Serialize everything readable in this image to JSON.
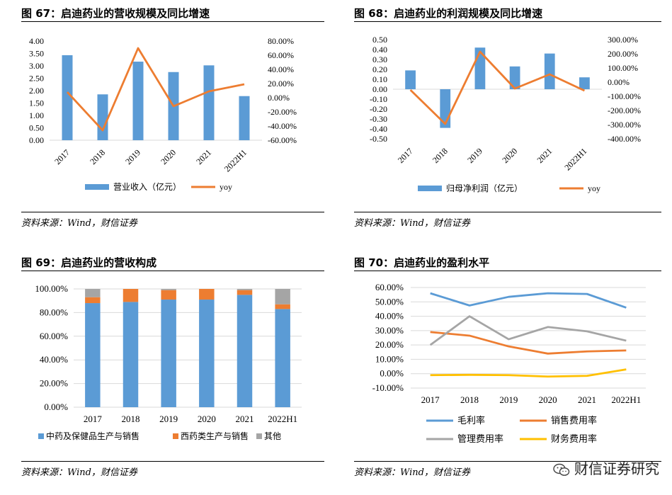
{
  "charts": [
    {
      "title": "图 67：启迪药业的营收规模及同比增速",
      "source": "资料来源：Wind，财信证券",
      "chart_data": {
        "type": "bar",
        "categories": [
          "2017",
          "2018",
          "2019",
          "2020",
          "2021",
          "2022H1"
        ],
        "series": [
          {
            "name": "营业收入（亿元）",
            "type": "bar",
            "axis": "left",
            "color": "#5b9bd5",
            "values": [
              3.43,
              1.85,
              3.17,
              2.75,
              3.02,
              1.78
            ]
          },
          {
            "name": "yoy",
            "type": "line",
            "axis": "right",
            "color": "#ed7d31",
            "values": [
              0.08,
              -0.46,
              0.7,
              -0.12,
              0.09,
              0.19
            ]
          }
        ],
        "y_left": {
          "min": 0,
          "max": 4,
          "step": 0.5,
          "ticks": [
            "4.00",
            "3.50",
            "3.00",
            "2.50",
            "2.00",
            "1.50",
            "1.00",
            "0.50",
            "0.00"
          ]
        },
        "y_right": {
          "min": -0.6,
          "max": 0.8,
          "step": 0.2,
          "ticks": [
            "80.00%",
            "60.00%",
            "40.00%",
            "20.00%",
            "0.00%",
            "-20.00%",
            "-40.00%",
            "-60.00%"
          ]
        },
        "xlabel": "",
        "ylabel": "",
        "grid": false,
        "legend": "bottom"
      }
    },
    {
      "title": "图 68：启迪药业的利润规模及同比增速",
      "source": "资料来源：Wind，财信证券",
      "chart_data": {
        "type": "bar",
        "categories": [
          "2017",
          "2018",
          "2019",
          "2020",
          "2021",
          "2022H1"
        ],
        "series": [
          {
            "name": "归母净利润（亿元）",
            "type": "bar",
            "axis": "left",
            "color": "#5b9bd5",
            "values": [
              0.19,
              -0.39,
              0.42,
              0.23,
              0.36,
              0.12
            ]
          },
          {
            "name": "yoy",
            "type": "line",
            "axis": "right",
            "color": "#ed7d31",
            "values": [
              -0.55,
              -2.95,
              2.15,
              -0.45,
              0.55,
              -0.6
            ]
          }
        ],
        "y_left": {
          "min": -0.5,
          "max": 0.5,
          "step": 0.1,
          "ticks": [
            "0.50",
            "0.40",
            "0.30",
            "0.20",
            "0.10",
            "0.00",
            "-0.10",
            "-0.20",
            "-0.30",
            "-0.40",
            "-0.50"
          ]
        },
        "y_right": {
          "min": -4,
          "max": 3,
          "step": 1,
          "ticks": [
            "300.00%",
            "200.00%",
            "100.00%",
            "0.00%",
            "-100.00%",
            "-200.00%",
            "-300.00%",
            "-400.00%"
          ]
        },
        "xlabel": "",
        "ylabel": "",
        "grid": false,
        "legend": "bottom"
      }
    },
    {
      "title": "图 69：启迪药业的营收构成",
      "source": "资料来源：Wind，财信证券",
      "chart_data": {
        "type": "bar",
        "stacked": true,
        "categories": [
          "2017",
          "2018",
          "2019",
          "2020",
          "2021",
          "2022H1"
        ],
        "series": [
          {
            "name": "中药及保健品生产与销售",
            "color": "#5b9bd5",
            "values": [
              0.88,
              0.89,
              0.91,
              0.91,
              0.95,
              0.83
            ]
          },
          {
            "name": "西药类生产与销售",
            "color": "#ed7d31",
            "values": [
              0.05,
              0.11,
              0.08,
              0.09,
              0.04,
              0.04
            ]
          },
          {
            "name": "其他",
            "color": "#a5a5a5",
            "values": [
              0.07,
              0.0,
              0.01,
              0.0,
              0.01,
              0.13
            ]
          }
        ],
        "y": {
          "min": 0,
          "max": 1,
          "step": 0.2,
          "ticks": [
            "100.00%",
            "80.00%",
            "60.00%",
            "40.00%",
            "20.00%",
            "0.00%"
          ]
        },
        "xlabel": "",
        "ylabel": "",
        "grid": true,
        "legend": "bottom"
      }
    },
    {
      "title": "图 70：启迪药业的盈利水平",
      "source": "资料来源：Wind，财信证券",
      "chart_data": {
        "type": "line",
        "categories": [
          "2017",
          "2018",
          "2019",
          "2020",
          "2021",
          "2022H1"
        ],
        "series": [
          {
            "name": "毛利率",
            "color": "#5b9bd5",
            "values": [
              0.56,
              0.475,
              0.535,
              0.56,
              0.555,
              0.46
            ]
          },
          {
            "name": "销售费用率",
            "color": "#ed7d31",
            "values": [
              0.29,
              0.265,
              0.19,
              0.14,
              0.155,
              0.162
            ]
          },
          {
            "name": "管理费用率",
            "color": "#a5a5a5",
            "values": [
              0.2,
              0.4,
              0.24,
              0.325,
              0.295,
              0.23
            ]
          },
          {
            "name": "财务费用率",
            "color": "#ffc000",
            "values": [
              -0.01,
              -0.008,
              -0.01,
              -0.02,
              -0.015,
              0.03
            ]
          }
        ],
        "y": {
          "min": -0.1,
          "max": 0.6,
          "step": 0.1,
          "ticks": [
            "60.00%",
            "50.00%",
            "40.00%",
            "30.00%",
            "20.00%",
            "10.00%",
            "0.00%",
            "-10.00%"
          ]
        },
        "xlabel": "",
        "ylabel": "",
        "grid": true,
        "legend": "bottom"
      }
    }
  ],
  "watermark": "财信证券研究"
}
